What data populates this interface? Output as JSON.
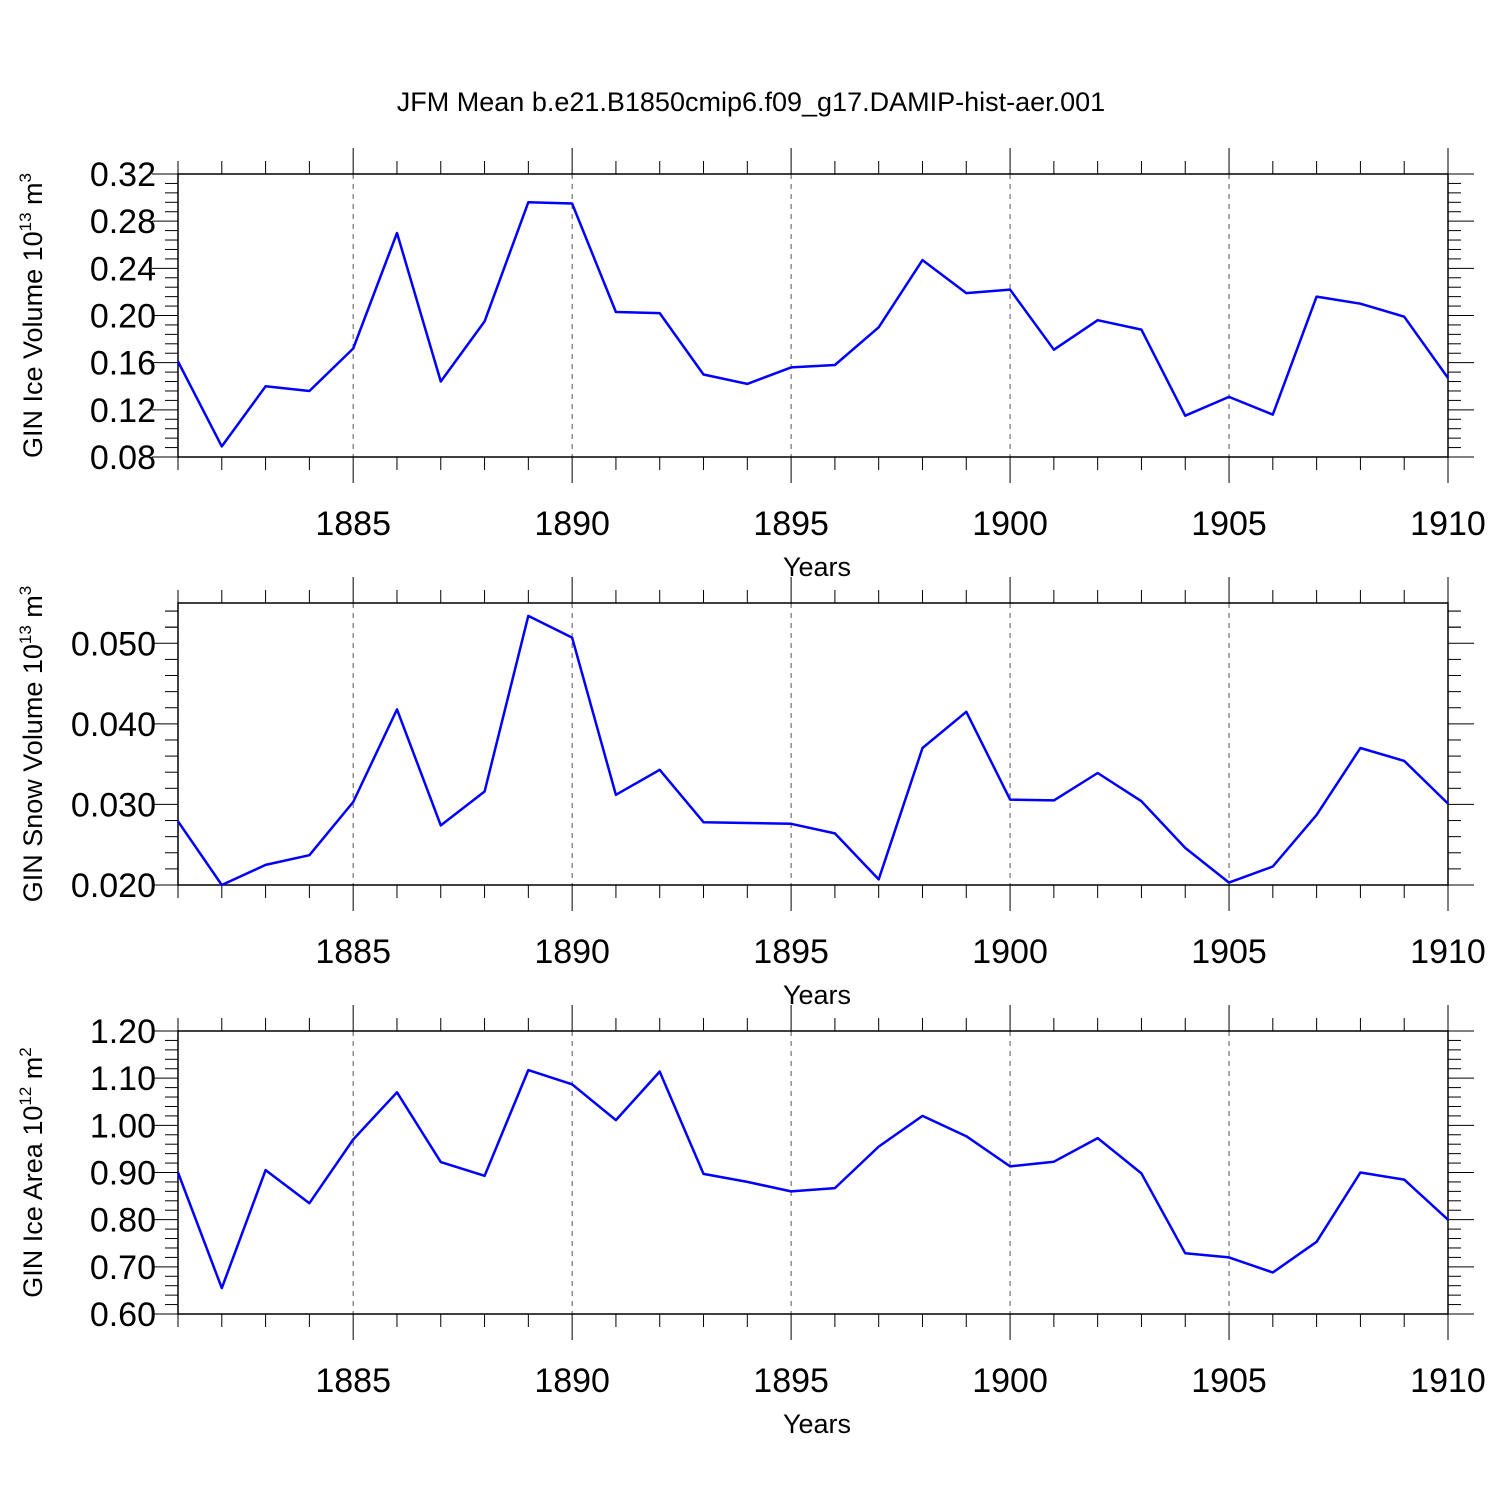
{
  "title": "JFM Mean b.e21.B1850cmip6.f09_g17.DAMIP-hist-aer.001",
  "colors": {
    "line": "#0000ff",
    "axis": "#000000",
    "grid": "#555555"
  },
  "chart_data": [
    {
      "type": "line",
      "ylabel": {
        "text": "GIN Ice Volume 10",
        "sup": "13",
        "unit": "m",
        "unit_sup": "3"
      },
      "xlabel": "Years",
      "xlim": [
        1881,
        1910
      ],
      "ylim": [
        0.08,
        0.32
      ],
      "xticks": [
        1885,
        1890,
        1895,
        1900,
        1905,
        1910
      ],
      "yticks": [
        0.08,
        0.12,
        0.16,
        0.2,
        0.24,
        0.28,
        0.32
      ],
      "ytick_labels": [
        "0.08",
        "0.12",
        "0.16",
        "0.20",
        "0.24",
        "0.28",
        "0.32"
      ],
      "grid": "vertical-dashed",
      "x": [
        1881,
        1882,
        1883,
        1884,
        1885,
        1886,
        1887,
        1888,
        1889,
        1890,
        1891,
        1892,
        1893,
        1894,
        1895,
        1896,
        1897,
        1898,
        1899,
        1900,
        1901,
        1902,
        1903,
        1904,
        1905,
        1906,
        1907,
        1908,
        1909,
        1910
      ],
      "values": [
        0.161,
        0.089,
        0.14,
        0.136,
        0.172,
        0.27,
        0.144,
        0.195,
        0.296,
        0.295,
        0.203,
        0.202,
        0.15,
        0.142,
        0.156,
        0.158,
        0.19,
        0.247,
        0.219,
        0.222,
        0.171,
        0.196,
        0.188,
        0.115,
        0.131,
        0.116,
        0.216,
        0.21,
        0.199,
        0.147
      ]
    },
    {
      "type": "line",
      "ylabel": {
        "text": "GIN Snow Volume 10",
        "sup": "13",
        "unit": "m",
        "unit_sup": "3"
      },
      "xlabel": "Years",
      "xlim": [
        1881,
        1910
      ],
      "ylim": [
        0.02,
        0.055
      ],
      "xticks": [
        1885,
        1890,
        1895,
        1900,
        1905,
        1910
      ],
      "yticks": [
        0.02,
        0.03,
        0.04,
        0.05
      ],
      "ytick_labels": [
        "0.020",
        "0.030",
        "0.040",
        "0.050"
      ],
      "grid": "vertical-dashed",
      "x": [
        1881,
        1882,
        1883,
        1884,
        1885,
        1886,
        1887,
        1888,
        1889,
        1890,
        1891,
        1892,
        1893,
        1894,
        1895,
        1896,
        1897,
        1898,
        1899,
        1900,
        1901,
        1902,
        1903,
        1904,
        1905,
        1906,
        1907,
        1908,
        1909,
        1910
      ],
      "values": [
        0.0279,
        0.02,
        0.0225,
        0.0237,
        0.0303,
        0.0418,
        0.0274,
        0.0316,
        0.0534,
        0.0507,
        0.0312,
        0.0343,
        0.0278,
        0.0277,
        0.0276,
        0.0264,
        0.0207,
        0.037,
        0.0415,
        0.0306,
        0.0305,
        0.0339,
        0.0304,
        0.0246,
        0.0203,
        0.0223,
        0.0287,
        0.037,
        0.0354,
        0.0301
      ]
    },
    {
      "type": "line",
      "ylabel": {
        "text": "GIN Ice Area 10",
        "sup": "12",
        "unit": "m",
        "unit_sup": "2"
      },
      "xlabel": "Years",
      "xlim": [
        1881,
        1910
      ],
      "ylim": [
        0.6,
        1.2
      ],
      "xticks": [
        1885,
        1890,
        1895,
        1900,
        1905,
        1910
      ],
      "yticks": [
        0.6,
        0.7,
        0.8,
        0.9,
        1.0,
        1.1,
        1.2
      ],
      "ytick_labels": [
        "0.60",
        "0.70",
        "0.80",
        "0.90",
        "1.00",
        "1.10",
        "1.20"
      ],
      "grid": "vertical-dashed",
      "x": [
        1881,
        1882,
        1883,
        1884,
        1885,
        1886,
        1887,
        1888,
        1889,
        1890,
        1891,
        1892,
        1893,
        1894,
        1895,
        1896,
        1897,
        1898,
        1899,
        1900,
        1901,
        1902,
        1903,
        1904,
        1905,
        1906,
        1907,
        1908,
        1909,
        1910
      ],
      "values": [
        0.9,
        0.655,
        0.905,
        0.835,
        0.97,
        1.07,
        0.922,
        0.893,
        1.117,
        1.087,
        1.011,
        1.114,
        0.897,
        0.88,
        0.86,
        0.867,
        0.955,
        1.02,
        0.977,
        0.913,
        0.923,
        0.973,
        0.898,
        0.729,
        0.72,
        0.688,
        0.753,
        0.9,
        0.885,
        0.8
      ]
    }
  ]
}
